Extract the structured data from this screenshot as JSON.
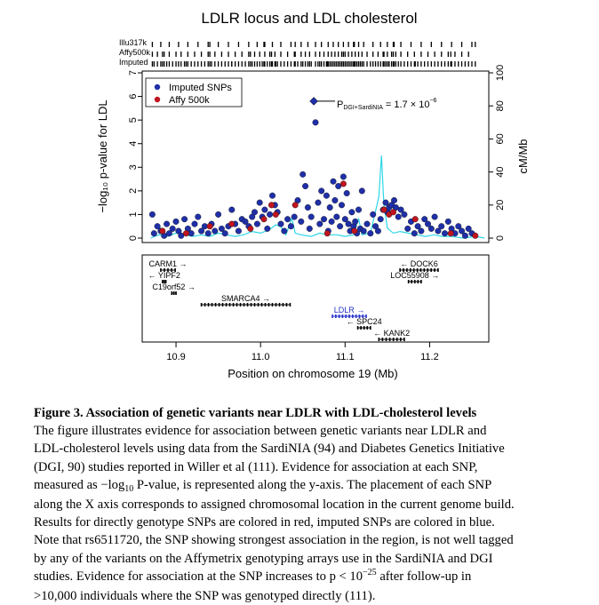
{
  "figure": {
    "title": "LDLR locus and LDL cholesterol",
    "xlabel": "Position on chromosome 19 (Mb)",
    "ylabel": "−log₁₀ p-value for LDL",
    "ylabel_right": "cM/Mb",
    "track_labels": [
      "Illu317k",
      "Affy500k",
      "Imputed"
    ],
    "legend": [
      {
        "label": "Imputed SNPs",
        "color": "#1f2fa8"
      },
      {
        "label": "Affy 500k",
        "color": "#c0141e"
      }
    ],
    "annotation": {
      "prefix": "P",
      "subscript": "DGI+SardiNIA",
      "equals": "= 1.7 × 10",
      "exponent": "−6"
    },
    "genes": [
      {
        "name": "CARM1",
        "dir": "→",
        "start": 10.882,
        "end": 10.899,
        "row": 0
      },
      {
        "name": "YIPF2",
        "dir": "←",
        "start": 10.884,
        "end": 10.888,
        "row": 1
      },
      {
        "name": "C19orf52",
        "dir": "→",
        "start": 10.895,
        "end": 10.9,
        "row": 2
      },
      {
        "name": "SMARCA4",
        "dir": "→",
        "start": 10.93,
        "end": 11.035,
        "row": 3
      },
      {
        "name": "LDLR",
        "dir": "→",
        "start": 11.085,
        "end": 11.125,
        "row": 4
      },
      {
        "name": "SPC24",
        "dir": "←",
        "start": 11.115,
        "end": 11.13,
        "row": 5
      },
      {
        "name": "KANK2",
        "dir": "←",
        "start": 11.14,
        "end": 11.17,
        "row": 6
      },
      {
        "name": "DOCK6",
        "dir": "←",
        "start": 11.165,
        "end": 11.21,
        "row": 0
      },
      {
        "name": "LOC55908",
        "dir": "→",
        "start": 11.175,
        "end": 11.19,
        "row": 1
      }
    ]
  },
  "chart_data": {
    "type": "scatter",
    "x_axis": {
      "ticks": [
        10.9,
        11.0,
        11.1,
        11.2
      ],
      "range": [
        10.86,
        11.27
      ]
    },
    "y_axis_left": {
      "ticks": [
        0,
        1,
        2,
        3,
        4,
        5,
        6,
        7
      ],
      "range": [
        0,
        7
      ]
    },
    "y_axis_right": {
      "ticks": [
        0,
        20,
        40,
        60,
        80,
        100
      ],
      "range": [
        0,
        100
      ]
    },
    "top_snp": {
      "x": 11.063,
      "y": 5.8
    },
    "series": [
      {
        "name": "Imputed SNPs",
        "color": "#1f2fa8",
        "points": [
          [
            10.872,
            1.0
          ],
          [
            10.874,
            0.2
          ],
          [
            10.878,
            0.5
          ],
          [
            10.882,
            0.3
          ],
          [
            10.886,
            0.1
          ],
          [
            10.889,
            0.6
          ],
          [
            10.892,
            0.2
          ],
          [
            10.896,
            0.4
          ],
          [
            10.9,
            0.7
          ],
          [
            10.903,
            0.3
          ],
          [
            10.906,
            0.1
          ],
          [
            10.91,
            0.8
          ],
          [
            10.914,
            0.4
          ],
          [
            10.918,
            0.2
          ],
          [
            10.922,
            0.6
          ],
          [
            10.926,
            0.9
          ],
          [
            10.93,
            0.3
          ],
          [
            10.934,
            0.5
          ],
          [
            10.938,
            0.2
          ],
          [
            10.942,
            0.6
          ],
          [
            10.946,
            0.3
          ],
          [
            10.95,
            1.0
          ],
          [
            10.954,
            0.4
          ],
          [
            10.958,
            0.2
          ],
          [
            10.962,
            0.5
          ],
          [
            10.966,
            1.2
          ],
          [
            10.97,
            0.6
          ],
          [
            10.974,
            0.3
          ],
          [
            10.978,
            0.8
          ],
          [
            10.982,
            0.7
          ],
          [
            10.986,
            0.5
          ],
          [
            10.99,
            0.9
          ],
          [
            10.993,
            1.1
          ],
          [
            10.996,
            0.6
          ],
          [
            10.999,
            1.5
          ],
          [
            11.002,
            0.9
          ],
          [
            11.005,
            1.2
          ],
          [
            11.008,
            0.4
          ],
          [
            11.011,
            1.0
          ],
          [
            11.014,
            1.8
          ],
          [
            11.017,
            1.4
          ],
          [
            11.02,
            1.1
          ],
          [
            11.024,
            0.6
          ],
          [
            11.028,
            0.3
          ],
          [
            11.032,
            0.8
          ],
          [
            11.036,
            0.5
          ],
          [
            11.04,
            0.9
          ],
          [
            11.044,
            1.6
          ],
          [
            11.048,
            0.7
          ],
          [
            11.05,
            2.7
          ],
          [
            11.053,
            2.2
          ],
          [
            11.056,
            1.3
          ],
          [
            11.058,
            0.4
          ],
          [
            11.06,
            0.9
          ],
          [
            11.065,
            4.9
          ],
          [
            11.068,
            1.5
          ],
          [
            11.07,
            0.6
          ],
          [
            11.072,
            2.0
          ],
          [
            11.075,
            0.8
          ],
          [
            11.078,
            1.8
          ],
          [
            11.08,
            0.3
          ],
          [
            11.082,
            1.3
          ],
          [
            11.084,
            0.7
          ],
          [
            11.086,
            2.4
          ],
          [
            11.088,
            1.6
          ],
          [
            11.09,
            0.9
          ],
          [
            11.092,
            2.2
          ],
          [
            11.094,
            0.5
          ],
          [
            11.096,
            1.4
          ],
          [
            11.098,
            2.6
          ],
          [
            11.1,
            0.8
          ],
          [
            11.102,
            1.9
          ],
          [
            11.104,
            0.6
          ],
          [
            11.106,
            0.3
          ],
          [
            11.108,
            1.1
          ],
          [
            11.11,
            0.5
          ],
          [
            11.112,
            0.7
          ],
          [
            11.114,
            0.2
          ],
          [
            11.116,
            1.2
          ],
          [
            11.118,
            0.4
          ],
          [
            11.12,
            2.0
          ],
          [
            11.122,
            0.3
          ],
          [
            11.126,
            0.6
          ],
          [
            11.13,
            0.2
          ],
          [
            11.133,
            1.0
          ],
          [
            11.136,
            0.5
          ],
          [
            11.139,
            0.3
          ],
          [
            11.142,
            0.8
          ],
          [
            11.145,
            1.2
          ],
          [
            11.148,
            1.5
          ],
          [
            11.15,
            1.1
          ],
          [
            11.152,
            1.3
          ],
          [
            11.155,
            1.4
          ],
          [
            11.158,
            1.6
          ],
          [
            11.16,
            1.3
          ],
          [
            11.163,
            0.9
          ],
          [
            11.166,
            1.2
          ],
          [
            11.17,
            1.0
          ],
          [
            11.174,
            0.4
          ],
          [
            11.178,
            0.7
          ],
          [
            11.182,
            0.2
          ],
          [
            11.186,
            0.5
          ],
          [
            11.19,
            0.3
          ],
          [
            11.194,
            0.8
          ],
          [
            11.198,
            0.6
          ],
          [
            11.202,
            0.4
          ],
          [
            11.206,
            0.9
          ],
          [
            11.21,
            0.3
          ],
          [
            11.214,
            0.5
          ],
          [
            11.218,
            0.2
          ],
          [
            11.222,
            0.7
          ],
          [
            11.226,
            0.4
          ],
          [
            11.23,
            0.2
          ],
          [
            11.234,
            0.5
          ],
          [
            11.238,
            0.3
          ],
          [
            11.242,
            0.1
          ],
          [
            11.246,
            0.4
          ],
          [
            11.25,
            0.2
          ]
        ]
      },
      {
        "name": "Affy 500k",
        "color": "#c0141e",
        "points": [
          [
            10.884,
            0.3
          ],
          [
            10.912,
            0.2
          ],
          [
            10.94,
            0.5
          ],
          [
            10.966,
            0.6
          ],
          [
            10.988,
            0.4
          ],
          [
            11.004,
            0.8
          ],
          [
            11.013,
            1.4
          ],
          [
            11.018,
            1.0
          ],
          [
            11.041,
            1.4
          ],
          [
            11.079,
            0.2
          ],
          [
            11.098,
            2.3
          ],
          [
            11.111,
            0.3
          ],
          [
            11.146,
            1.2
          ],
          [
            11.152,
            1.0
          ],
          [
            11.157,
            1.1
          ],
          [
            11.183,
            0.8
          ],
          [
            11.225,
            0.2
          ],
          [
            11.254,
            0.1
          ]
        ]
      }
    ],
    "recombination_rate": [
      [
        10.87,
        0
      ],
      [
        10.88,
        2
      ],
      [
        10.89,
        1
      ],
      [
        10.9,
        3
      ],
      [
        10.91,
        2
      ],
      [
        10.92,
        1
      ],
      [
        10.93,
        2
      ],
      [
        10.94,
        1
      ],
      [
        10.95,
        3
      ],
      [
        10.96,
        2
      ],
      [
        10.97,
        1
      ],
      [
        10.98,
        2
      ],
      [
        10.99,
        4
      ],
      [
        11.0,
        3
      ],
      [
        11.01,
        5
      ],
      [
        11.018,
        8
      ],
      [
        11.024,
        7
      ],
      [
        11.03,
        2
      ],
      [
        11.037,
        12
      ],
      [
        11.041,
        3
      ],
      [
        11.048,
        2
      ],
      [
        11.06,
        1
      ],
      [
        11.07,
        3
      ],
      [
        11.08,
        2
      ],
      [
        11.09,
        2
      ],
      [
        11.1,
        1
      ],
      [
        11.11,
        2
      ],
      [
        11.116,
        12
      ],
      [
        11.12,
        2
      ],
      [
        11.13,
        3
      ],
      [
        11.14,
        25
      ],
      [
        11.143,
        50
      ],
      [
        11.146,
        20
      ],
      [
        11.15,
        6
      ],
      [
        11.157,
        3
      ],
      [
        11.165,
        4
      ],
      [
        11.175,
        3
      ],
      [
        11.185,
        2
      ],
      [
        11.195,
        1
      ],
      [
        11.205,
        2
      ],
      [
        11.215,
        1
      ],
      [
        11.225,
        1
      ],
      [
        11.24,
        0
      ],
      [
        11.255,
        1
      ],
      [
        11.265,
        0
      ]
    ]
  },
  "caption": {
    "title": "Figure 3. Association of genetic variants near LDLR with LDL-cholesterol levels",
    "line1": "The figure illustrates evidence for association between genetic variants near LDLR and",
    "line2": "LDL-cholesterol levels using data from the SardiNIA (94) and Diabetes Genetics Initiative",
    "line3": "(DGI, 90) studies reported in Willer et al (111). Evidence for association at each SNP,",
    "line4_a": "measured as −log",
    "line4_sub": "10",
    "line4_b": " P-value, is represented along the y-axis. The placement of each SNP",
    "line5": "along the X axis corresponds to assigned chromosomal location in the current genome build.",
    "line6": "Results for directly genotype SNPs are colored in red, imputed SNPs are colored in blue.",
    "line7": "Note that rs6511720, the SNP showing strongest association in the region, is not well tagged",
    "line8": "by any of the variants on the Affymetrix genotyping arrays use in the SardiNIA and DGI",
    "line9_a": "studies. Evidence for association at the SNP increases to p < 10",
    "line9_sup": "−25",
    "line9_b": " after follow-up in",
    "line10": ">10,000 individuals where the SNP was genotyped directly (111)."
  }
}
